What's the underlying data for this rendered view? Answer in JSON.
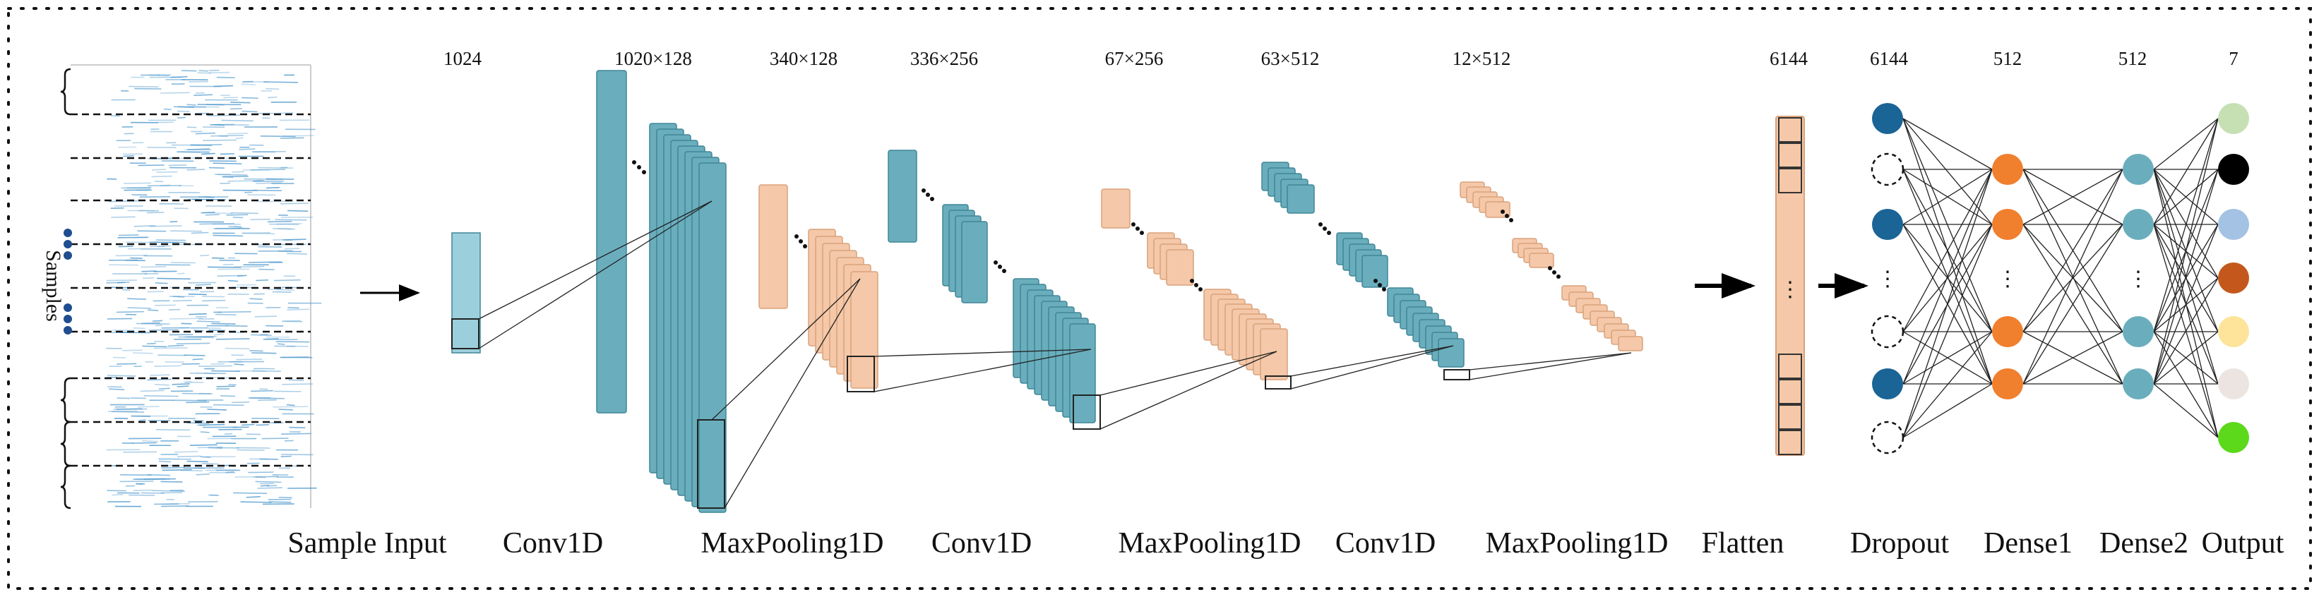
{
  "diagram": {
    "y_axis_label": "Samples",
    "dimensions": {
      "input": "1024",
      "conv1": "1020×128",
      "pool1": "340×128",
      "conv2": "336×256",
      "pool2": "67×256",
      "conv3": "63×512",
      "pool3": "12×512",
      "flatten": "6144",
      "dropout": "6144",
      "dense1": "512",
      "dense2": "512",
      "output": "7"
    },
    "layers": {
      "input": "Sample Input",
      "conv1": "Conv1D",
      "pool1": "MaxPooling1D",
      "conv2": "Conv1D",
      "pool2": "MaxPooling1D",
      "conv3": "Conv1D",
      "pool3": "MaxPooling1D",
      "flatten": "Flatten",
      "dropout": "Dropout",
      "dense1": "Dense1",
      "dense2": "Dense2",
      "output": "Output"
    },
    "ellipsis": "⋮",
    "colors": {
      "conv": "#6aaebd",
      "conv_edge": "#3f8597",
      "input_light": "#9ccfdc",
      "pool": "#f4c8a8",
      "pool_edge": "#d9a27c",
      "dropout_node": "#1b6496",
      "dense1_node": "#f07f2e",
      "dense2_node": "#6aaebd",
      "signal": "#5a9fd0",
      "sample_dots": "#1f4d8f"
    },
    "output_node_colors": [
      "#c6e0b4",
      "#000000",
      "#a4c2e4",
      "#c4581c",
      "#fde49a",
      "#ece4e0",
      "#5bd91a"
    ]
  }
}
